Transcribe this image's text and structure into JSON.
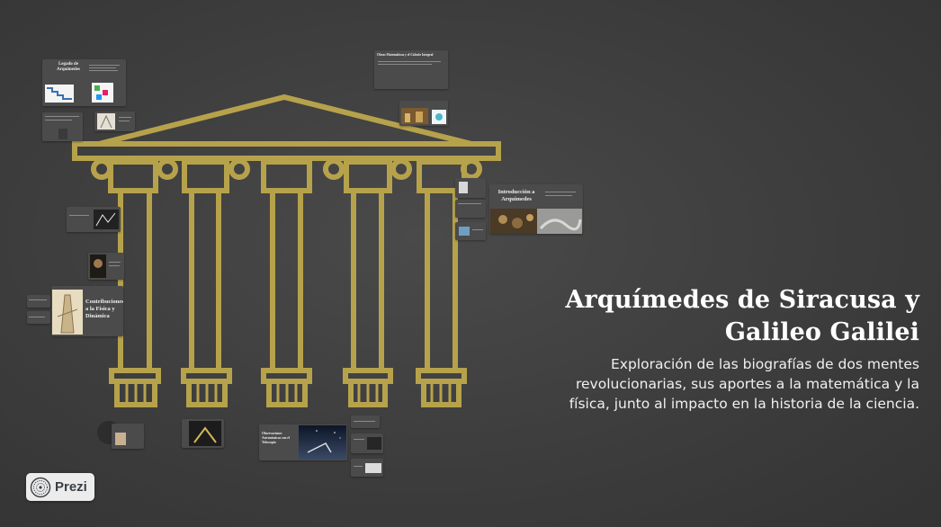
{
  "presentation": {
    "title": "Arquímedes de Siracusa y Galileo Galilei",
    "subtitle": "Exploración de las biografías de dos mentes revolucionarias, sus aportes a la matemática y la física, junto al impacto en la historia de la ciencia."
  },
  "topics": {
    "legado": "Legado de Arquímedes",
    "obras": "Obras Matemáticas y el Cálculo Integral",
    "introduccion": "Introducción a Arquímedes",
    "contribuciones": "Contribuciones a la Física y Dinámica",
    "observaciones": "Observaciones Astronómicas con el Telescopio"
  },
  "branding": {
    "logo_text": "Prezi",
    "logo_icon": "prezi-logo-icon"
  },
  "colors": {
    "background": "#3d3d3d",
    "temple_gold": "#b7a24c",
    "title_text": "#ffffff"
  }
}
